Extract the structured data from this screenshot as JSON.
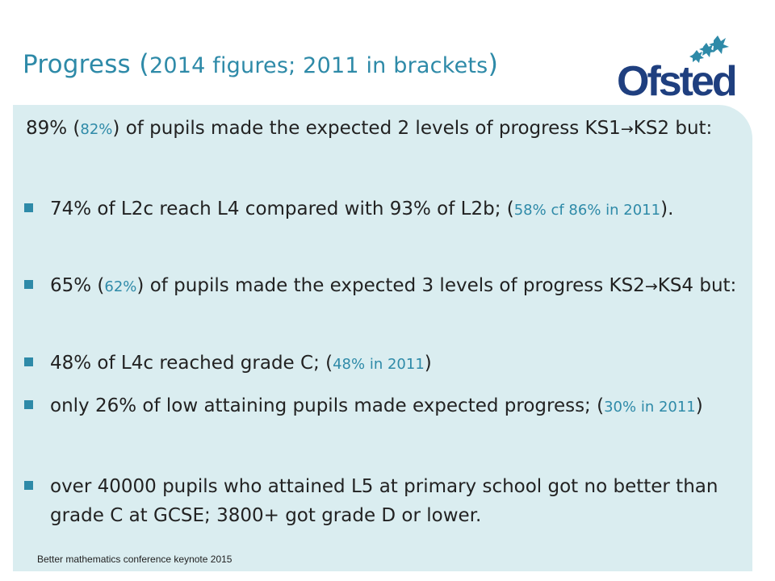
{
  "title": {
    "main": "Progress",
    "open": " (",
    "detail": "2014 figures; 2011 in brackets",
    "close": ")"
  },
  "logo": {
    "text": "Ofsted",
    "stars": "star-cluster-icon"
  },
  "intro": {
    "pre": "89% (",
    "prev": "82%",
    "mid": ") of pupils made the expected 2 levels of progress KS1",
    "arrow": "→",
    "post": "KS2 but:"
  },
  "bullets": [
    {
      "pre": "74% of L2c reach L4 compared with 93% of L2b; (",
      "prev": "58% cf 86% in 2011",
      "post": ")."
    },
    {
      "pre": "65% (",
      "prev": "62%",
      "mid": ") of pupils made the expected 3 levels of progress KS2",
      "arrow": "→",
      "post": "KS4 but:"
    },
    {
      "pre": "48% of L4c reached grade C; (",
      "prev": "48% in 2011",
      "post": ")"
    },
    {
      "pre": "only 26% of low attaining pupils made expected progress; (",
      "prev": "30% in 2011",
      "post": ")"
    },
    {
      "text": "over 40000 pupils who attained L5 at primary school got no better than grade C at GCSE; 3800+ got grade D or lower."
    }
  ],
  "footer": "Better mathematics conference keynote 2015",
  "colors": {
    "accent": "#2e8aa8",
    "logo": "#1f3f7f",
    "panel": "#daedf0"
  }
}
